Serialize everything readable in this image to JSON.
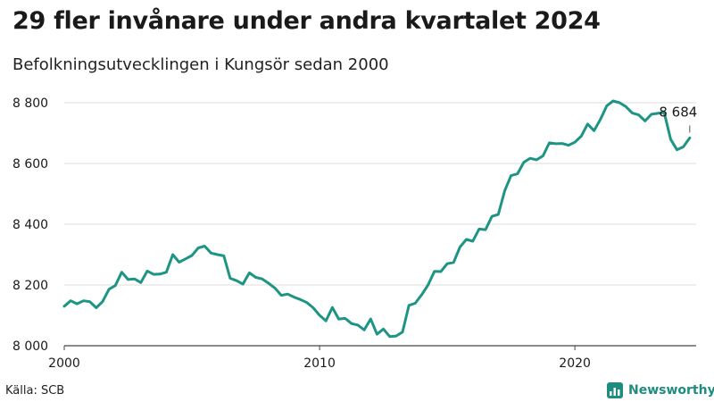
{
  "header": {
    "title": "29 fler invånare under andra kvartalet 2024",
    "subtitle": "Befolkningsutvecklingen i Kungsör sedan 2000"
  },
  "footer": {
    "source": "Källa: SCB",
    "brand": "Newsworthy"
  },
  "colors": {
    "line": "#1e9584",
    "grid": "#dddddd",
    "text": "#1a1a1a",
    "brand": "#1e8c7e"
  },
  "chart_data": {
    "type": "line",
    "title": "29 fler invånare under andra kvartalet 2024",
    "subtitle": "Befolkningsutvecklingen i Kungsör sedan 2000",
    "xlabel": "",
    "ylabel": "",
    "xlim": [
      2000,
      2024.75
    ],
    "ylim": [
      8000,
      8800
    ],
    "grid": true,
    "x_ticks": [
      2000,
      2010,
      2020
    ],
    "x_tick_labels": [
      "2000",
      "2010",
      "2020"
    ],
    "y_ticks": [
      8000,
      8200,
      8400,
      8600,
      8800
    ],
    "y_tick_labels": [
      "8 000",
      "8 200",
      "8 400",
      "8 600",
      "8 800"
    ],
    "annotation": {
      "x": 2024.5,
      "y": 8684,
      "text": "8 684"
    },
    "series": [
      {
        "x": [
          2000.0,
          2000.25,
          2000.5,
          2000.75,
          2001.0,
          2001.25,
          2001.5,
          2001.75,
          2002.0,
          2002.25,
          2002.5,
          2002.75,
          2003.0,
          2003.25,
          2003.5,
          2003.75,
          2004.0,
          2004.25,
          2004.5,
          2004.75,
          2005.0,
          2005.25,
          2005.5,
          2005.75,
          2006.0,
          2006.25,
          2006.5,
          2006.75,
          2007.0,
          2007.25,
          2007.5,
          2007.75,
          2008.0,
          2008.25,
          2008.5,
          2008.75,
          2009.0,
          2009.25,
          2009.5,
          2009.75,
          2010.0,
          2010.25,
          2010.5,
          2010.75,
          2011.0,
          2011.25,
          2011.5,
          2011.75,
          2012.0,
          2012.25,
          2012.5,
          2012.75,
          2013.0,
          2013.25,
          2013.5,
          2013.75,
          2014.0,
          2014.25,
          2014.5,
          2014.75,
          2015.0,
          2015.25,
          2015.5,
          2015.75,
          2016.0,
          2016.25,
          2016.5,
          2016.75,
          2017.0,
          2017.25,
          2017.5,
          2017.75,
          2018.0,
          2018.25,
          2018.5,
          2018.75,
          2019.0,
          2019.25,
          2019.5,
          2019.75,
          2020.0,
          2020.25,
          2020.5,
          2020.75,
          2021.0,
          2021.25,
          2021.5,
          2021.75,
          2022.0,
          2022.25,
          2022.5,
          2022.75,
          2023.0,
          2023.25,
          2023.5,
          2023.75,
          2024.0,
          2024.25,
          2024.5
        ],
        "values": [
          8130,
          8148,
          8138,
          8148,
          8145,
          8125,
          8145,
          8186,
          8198,
          8242,
          8218,
          8220,
          8208,
          8246,
          8235,
          8236,
          8242,
          8300,
          8275,
          8286,
          8297,
          8322,
          8328,
          8305,
          8300,
          8296,
          8222,
          8214,
          8203,
          8240,
          8225,
          8220,
          8206,
          8190,
          8166,
          8170,
          8160,
          8152,
          8142,
          8125,
          8100,
          8082,
          8126,
          8088,
          8090,
          8073,
          8068,
          8052,
          8088,
          8038,
          8055,
          8030,
          8032,
          8045,
          8133,
          8140,
          8168,
          8200,
          8245,
          8244,
          8270,
          8274,
          8325,
          8350,
          8344,
          8384,
          8382,
          8426,
          8432,
          8510,
          8560,
          8566,
          8604,
          8617,
          8612,
          8625,
          8668,
          8665,
          8666,
          8660,
          8670,
          8690,
          8730,
          8708,
          8745,
          8790,
          8806,
          8800,
          8787,
          8766,
          8760,
          8740,
          8762,
          8765,
          8768,
          8680,
          8645,
          8655,
          8684
        ]
      }
    ]
  }
}
